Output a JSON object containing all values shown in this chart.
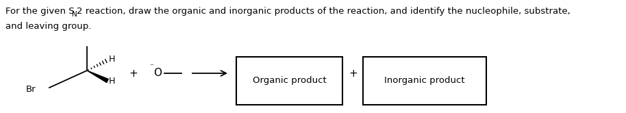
{
  "bg_color": "#ffffff",
  "text_color": "#000000",
  "box1_label": "Organic product",
  "box2_label": "Inorganic product",
  "box_color": "#ffffff",
  "box_edge_color": "#000000",
  "plus_sign": "+",
  "arrow_color": "#000000",
  "br_label": "Br",
  "h_label1": "H",
  "h_label2": "H",
  "o_label": "O",
  "line1_prefix": "For the given S",
  "line1_sub": "N",
  "line1_suffix": "2 reaction, draw the organic and inorganic products of the reaction, and identify the nucleophile, substrate,",
  "line2": "and leaving group.",
  "figwidth": 9.14,
  "figheight": 1.65,
  "dpi": 100
}
